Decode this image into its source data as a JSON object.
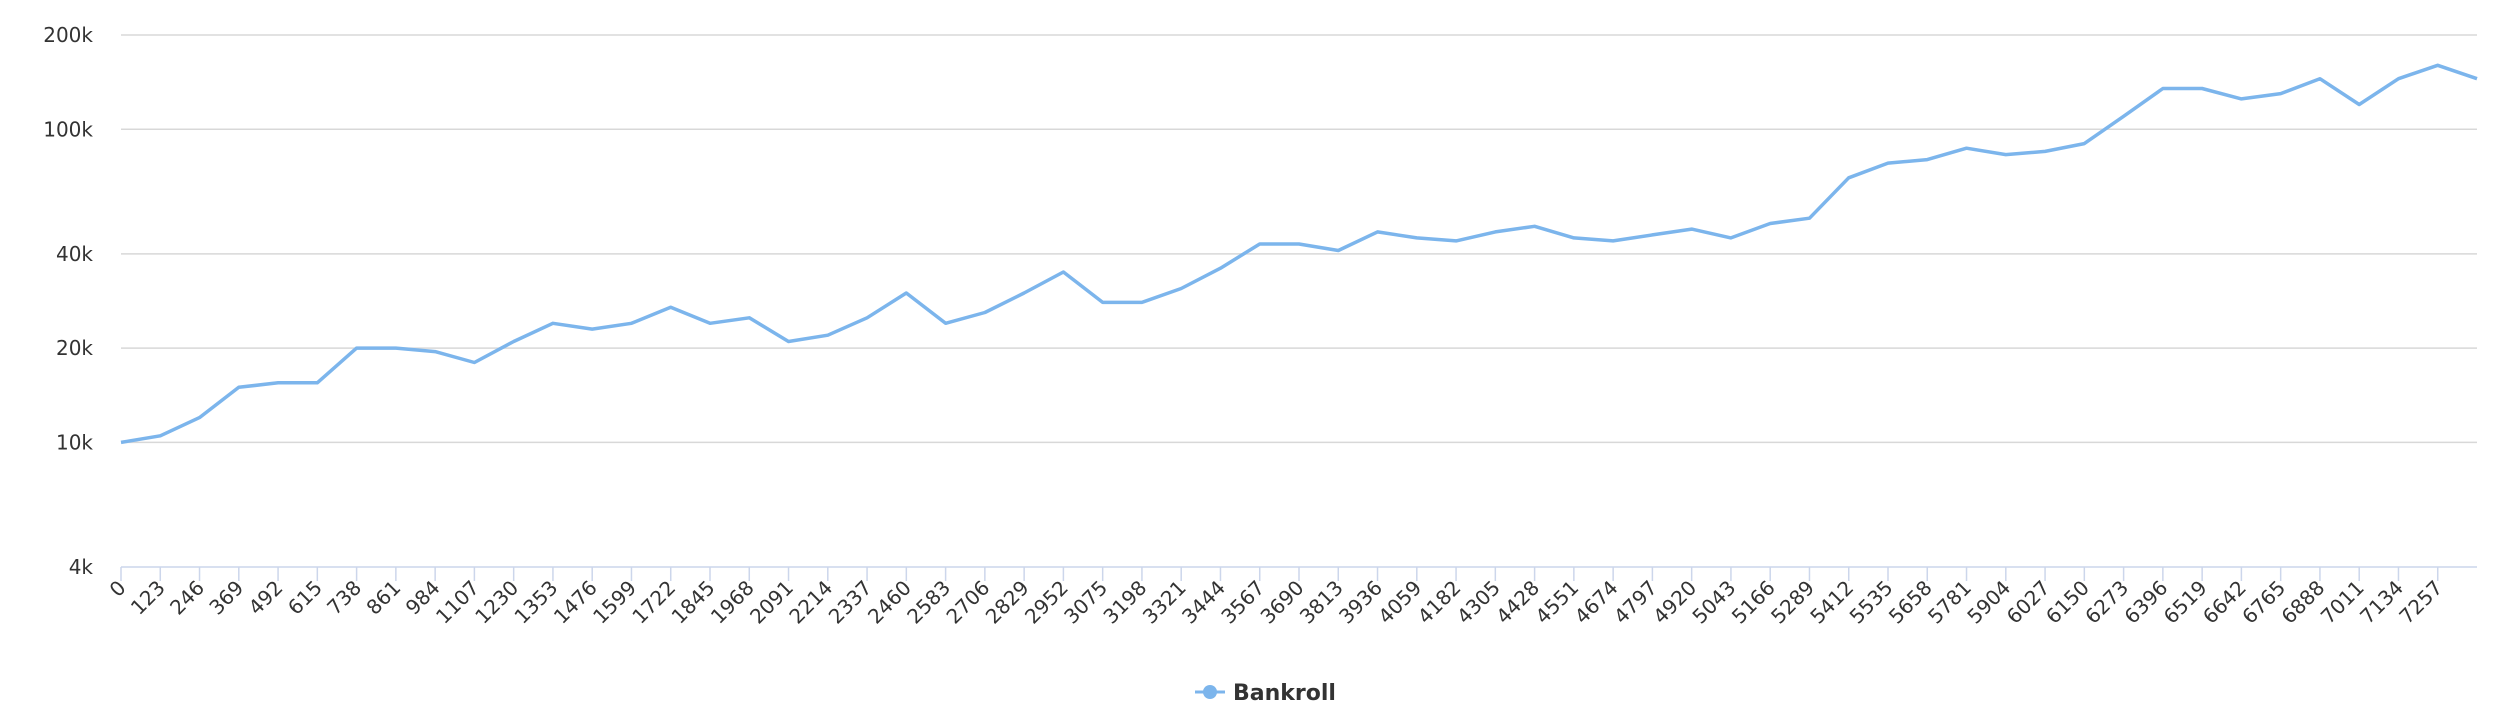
{
  "chart_data": {
    "type": "line",
    "x": [
      0,
      123,
      246,
      369,
      492,
      615,
      738,
      861,
      984,
      1107,
      1230,
      1353,
      1476,
      1599,
      1722,
      1845,
      1968,
      2091,
      2214,
      2337,
      2460,
      2583,
      2706,
      2829,
      2952,
      3075,
      3198,
      3321,
      3444,
      3567,
      3690,
      3813,
      3936,
      4059,
      4182,
      4305,
      4428,
      4551,
      4674,
      4797,
      4920,
      5043,
      5166,
      5289,
      5412,
      5535,
      5658,
      5781,
      5904,
      6027,
      6150,
      6273,
      6396,
      6519,
      6642,
      6765,
      6888,
      7011,
      7134,
      7257,
      7380
    ],
    "series": [
      {
        "name": "Bankroll",
        "color": "#7cb5ec",
        "values": [
          10000,
          10500,
          12000,
          15000,
          15500,
          15500,
          20000,
          20000,
          19500,
          18000,
          21000,
          24000,
          23000,
          24000,
          27000,
          24000,
          25000,
          21000,
          22000,
          25000,
          30000,
          24000,
          26000,
          30000,
          35000,
          28000,
          28000,
          31000,
          36000,
          43000,
          43000,
          41000,
          47000,
          45000,
          44000,
          47000,
          49000,
          45000,
          44000,
          46000,
          48000,
          45000,
          50000,
          52000,
          70000,
          78000,
          80000,
          87000,
          83000,
          85000,
          90000,
          110000,
          135000,
          135000,
          125000,
          130000,
          145000,
          120000,
          145000,
          160000,
          145000
        ]
      }
    ],
    "xlim": [
      0,
      7380
    ],
    "xticks": [
      0,
      123,
      246,
      369,
      492,
      615,
      738,
      861,
      984,
      1107,
      1230,
      1353,
      1476,
      1599,
      1722,
      1845,
      1968,
      2091,
      2214,
      2337,
      2460,
      2583,
      2706,
      2829,
      2952,
      3075,
      3198,
      3321,
      3444,
      3567,
      3690,
      3813,
      3936,
      4059,
      4182,
      4305,
      4428,
      4551,
      4674,
      4797,
      4920,
      5043,
      5166,
      5289,
      5412,
      5535,
      5658,
      5781,
      5904,
      6027,
      6150,
      6273,
      6396,
      6519,
      6642,
      6765,
      6888,
      7011,
      7134,
      7257
    ],
    "ylim": [
      4000,
      200000
    ],
    "yticks": [
      {
        "value": 4000,
        "label": "4k"
      },
      {
        "value": 10000,
        "label": "10k"
      },
      {
        "value": 20000,
        "label": "20k"
      },
      {
        "value": 40000,
        "label": "40k"
      },
      {
        "value": 100000,
        "label": "100k"
      },
      {
        "value": 200000,
        "label": "200k"
      }
    ],
    "log_y": true,
    "grid": true
  }
}
